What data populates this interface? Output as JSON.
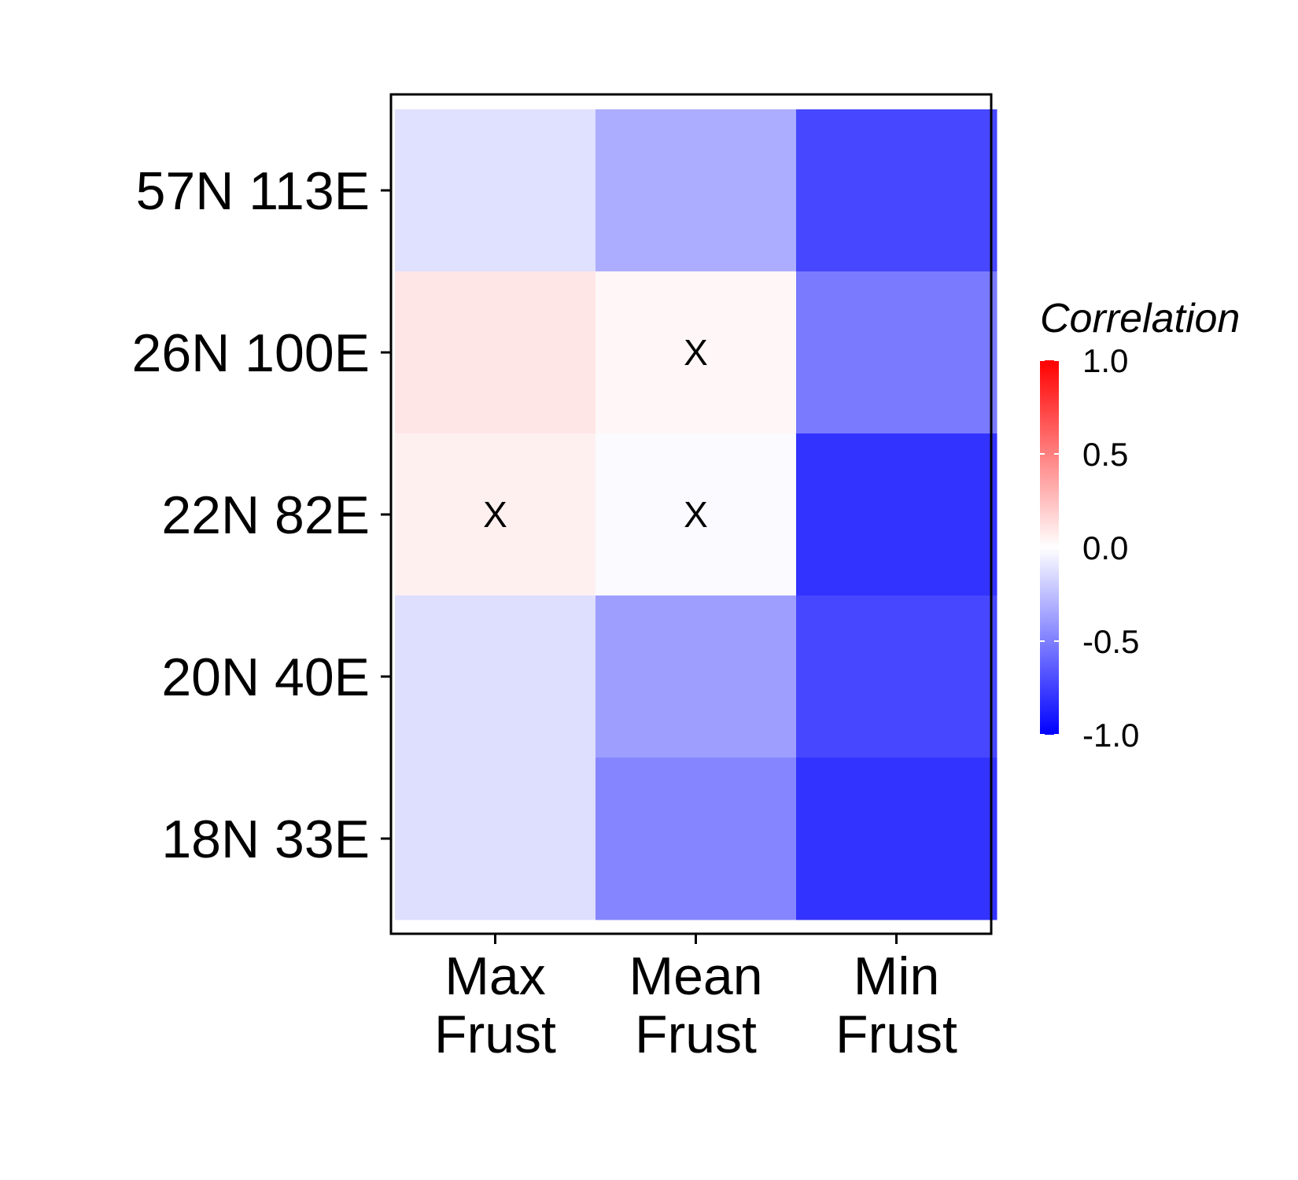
{
  "chart_data": {
    "type": "heatmap",
    "x_categories": [
      "Max\nFrust",
      "Mean\nFrust",
      "Min\nFrust"
    ],
    "y_categories": [
      "57N 113E",
      "26N 100E",
      "22N 82E",
      "20N 40E",
      "18N 33E"
    ],
    "values": [
      [
        -0.12,
        -0.32,
        -0.72
      ],
      [
        0.1,
        0.03,
        -0.52
      ],
      [
        0.06,
        -0.02,
        -0.8
      ],
      [
        -0.13,
        -0.38,
        -0.72
      ],
      [
        -0.13,
        -0.48,
        -0.8
      ]
    ],
    "marks": [
      [
        false,
        false,
        false
      ],
      [
        false,
        true,
        false
      ],
      [
        true,
        true,
        false
      ],
      [
        false,
        false,
        false
      ],
      [
        false,
        false,
        false
      ]
    ],
    "mark_symbol": "X",
    "legend": {
      "title": "Correlation",
      "range": [
        -1.0,
        1.0
      ],
      "ticks": [
        "1.0",
        "0.5",
        "0.0",
        "-0.5",
        "-1.0"
      ],
      "tick_values": [
        1.0,
        0.5,
        0.0,
        -0.5,
        -1.0
      ],
      "placement": "right",
      "colors": {
        "low": "#0000ff",
        "mid": "#ffffff",
        "high": "#ff0000"
      }
    }
  }
}
